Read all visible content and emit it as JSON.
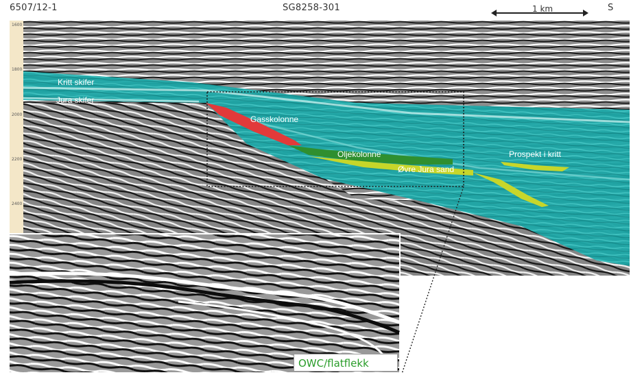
{
  "header": {
    "well_name": "6507/12-1",
    "seismic_line": "SG8258-301",
    "direction": "S"
  },
  "scale_bar": {
    "label": "1 km"
  },
  "depth_ticks": [
    "1600",
    "1800",
    "2000",
    "2200",
    "2400"
  ],
  "labels": {
    "kritt_skifer": "Kritt skifer",
    "jura_skifer": "Jura skifer",
    "gasskolonne": "Gasskolonne",
    "oljekolonne": "Oljekolonne",
    "ovre_jura_sand": "Øvre Jura sand",
    "prospekt_i_kritt": "Prospekt i kritt",
    "owc_flatflekk": "OWC/flatflekk"
  },
  "colors": {
    "shale_teal": "#1ea6a6",
    "gas": "#e23a3a",
    "oil": "#2f8f2f",
    "sand": "#c7d62a",
    "owc_text": "#2a9d2a"
  }
}
